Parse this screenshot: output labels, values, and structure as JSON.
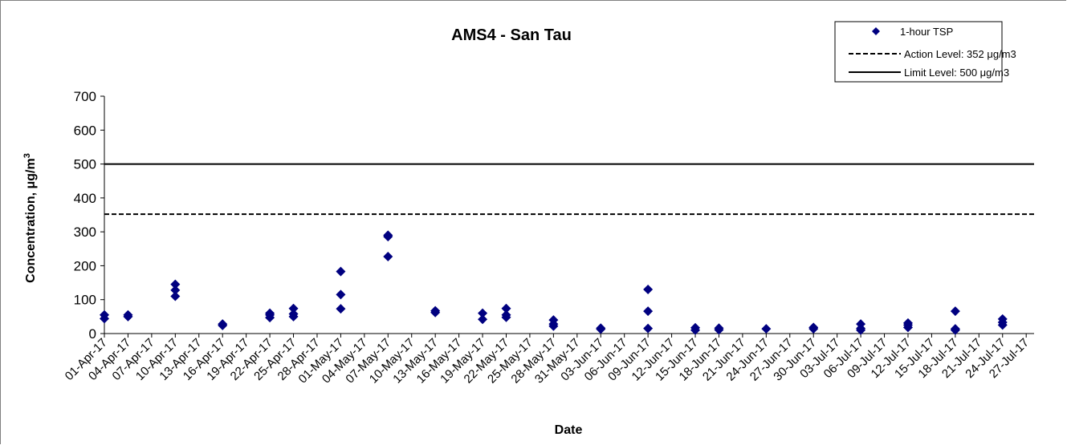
{
  "chart_data": {
    "type": "scatter",
    "title": "AMS4 - San Tau",
    "xlabel": "Date",
    "ylabel_main": "Concentration, μg/m",
    "ylabel_sup": "3",
    "ylim": [
      0,
      700
    ],
    "yticks": [
      0,
      100,
      200,
      300,
      400,
      500,
      600,
      700
    ],
    "xlim": [
      "2017-04-01",
      "2017-07-28"
    ],
    "xticks": [
      "01-Apr-17",
      "04-Apr-17",
      "07-Apr-17",
      "10-Apr-17",
      "13-Apr-17",
      "16-Apr-17",
      "19-Apr-17",
      "22-Apr-17",
      "25-Apr-17",
      "28-Apr-17",
      "01-May-17",
      "04-May-17",
      "07-May-17",
      "10-May-17",
      "13-May-17",
      "16-May-17",
      "19-May-17",
      "22-May-17",
      "25-May-17",
      "28-May-17",
      "31-May-17",
      "03-Jun-17",
      "06-Jun-17",
      "09-Jun-17",
      "12-Jun-17",
      "15-Jun-17",
      "18-Jun-17",
      "21-Jun-17",
      "24-Jun-17",
      "27-Jun-17",
      "30-Jun-17",
      "03-Jul-17",
      "06-Jul-17",
      "09-Jul-17",
      "12-Jul-17",
      "15-Jul-17",
      "18-Jul-17",
      "21-Jul-17",
      "24-Jul-17",
      "27-Jul-17"
    ],
    "grid": false,
    "legend_position": "top-right",
    "legend": [
      {
        "label": "1-hour TSP",
        "style": "diamond"
      },
      {
        "label": "Action Level: 352 μg/m3",
        "style": "dashed"
      },
      {
        "label": "Limit Level: 500 μg/m3",
        "style": "solid"
      }
    ],
    "reference_lines": [
      {
        "name": "Action Level",
        "value": 352,
        "style": "dashed"
      },
      {
        "name": "Limit Level",
        "value": 500,
        "style": "solid"
      }
    ],
    "series": [
      {
        "name": "1-hour TSP",
        "color": "#000080",
        "points": [
          {
            "x": "2017-04-01",
            "y": 44
          },
          {
            "x": "2017-04-01",
            "y": 55
          },
          {
            "x": "2017-04-04",
            "y": 50
          },
          {
            "x": "2017-04-04",
            "y": 55
          },
          {
            "x": "2017-04-10",
            "y": 110
          },
          {
            "x": "2017-04-10",
            "y": 128
          },
          {
            "x": "2017-04-10",
            "y": 145
          },
          {
            "x": "2017-04-16",
            "y": 24
          },
          {
            "x": "2017-04-16",
            "y": 28
          },
          {
            "x": "2017-04-22",
            "y": 47
          },
          {
            "x": "2017-04-22",
            "y": 55
          },
          {
            "x": "2017-04-22",
            "y": 60
          },
          {
            "x": "2017-04-25",
            "y": 50
          },
          {
            "x": "2017-04-25",
            "y": 58
          },
          {
            "x": "2017-04-25",
            "y": 74
          },
          {
            "x": "2017-05-01",
            "y": 73
          },
          {
            "x": "2017-05-01",
            "y": 115
          },
          {
            "x": "2017-05-01",
            "y": 183
          },
          {
            "x": "2017-05-07",
            "y": 227
          },
          {
            "x": "2017-05-07",
            "y": 286
          },
          {
            "x": "2017-05-07",
            "y": 290
          },
          {
            "x": "2017-05-13",
            "y": 62
          },
          {
            "x": "2017-05-13",
            "y": 67
          },
          {
            "x": "2017-05-19",
            "y": 42
          },
          {
            "x": "2017-05-19",
            "y": 60
          },
          {
            "x": "2017-05-22",
            "y": 48
          },
          {
            "x": "2017-05-22",
            "y": 55
          },
          {
            "x": "2017-05-22",
            "y": 74
          },
          {
            "x": "2017-05-28",
            "y": 22
          },
          {
            "x": "2017-05-28",
            "y": 28
          },
          {
            "x": "2017-05-28",
            "y": 40
          },
          {
            "x": "2017-06-03",
            "y": 13
          },
          {
            "x": "2017-06-03",
            "y": 16
          },
          {
            "x": "2017-06-09",
            "y": 15
          },
          {
            "x": "2017-06-09",
            "y": 66
          },
          {
            "x": "2017-06-09",
            "y": 130
          },
          {
            "x": "2017-06-15",
            "y": 10
          },
          {
            "x": "2017-06-15",
            "y": 17
          },
          {
            "x": "2017-06-18",
            "y": 11
          },
          {
            "x": "2017-06-18",
            "y": 16
          },
          {
            "x": "2017-06-24",
            "y": 14
          },
          {
            "x": "2017-06-30",
            "y": 14
          },
          {
            "x": "2017-06-30",
            "y": 18
          },
          {
            "x": "2017-07-06",
            "y": 10
          },
          {
            "x": "2017-07-06",
            "y": 15
          },
          {
            "x": "2017-07-06",
            "y": 28
          },
          {
            "x": "2017-07-12",
            "y": 18
          },
          {
            "x": "2017-07-12",
            "y": 25
          },
          {
            "x": "2017-07-12",
            "y": 31
          },
          {
            "x": "2017-07-18",
            "y": 10
          },
          {
            "x": "2017-07-18",
            "y": 14
          },
          {
            "x": "2017-07-18",
            "y": 66
          },
          {
            "x": "2017-07-24",
            "y": 25
          },
          {
            "x": "2017-07-24",
            "y": 33
          },
          {
            "x": "2017-07-24",
            "y": 43
          }
        ]
      }
    ]
  }
}
